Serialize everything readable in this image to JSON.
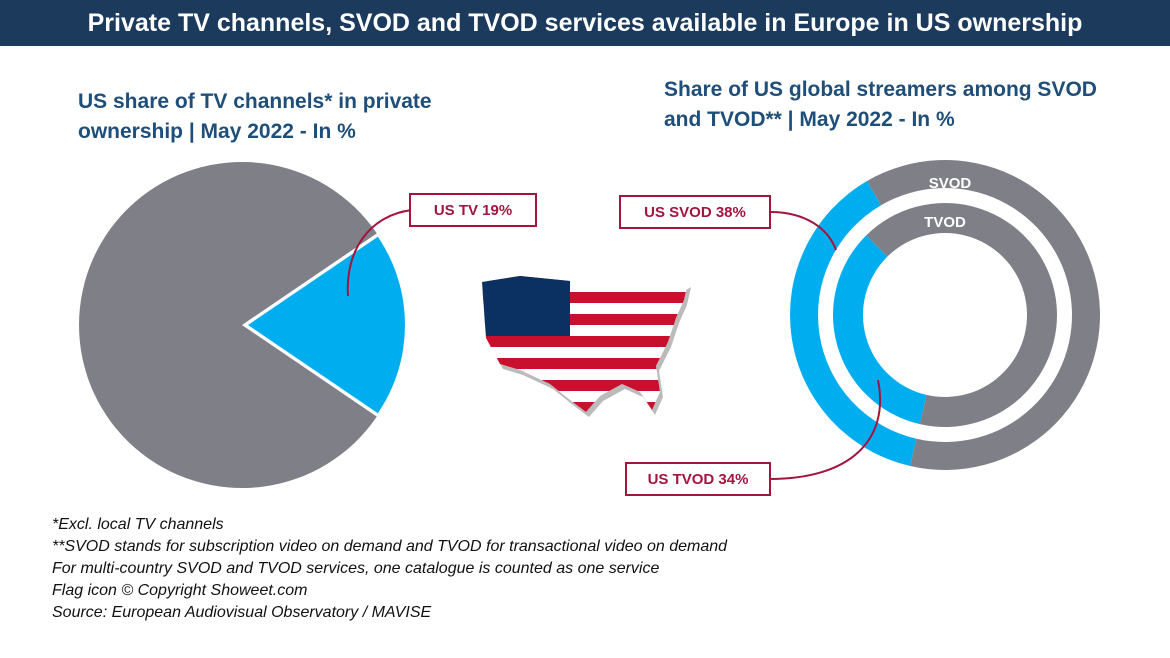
{
  "header": {
    "title": "Private TV channels, SVOD and TVOD services available in Europe in US ownership"
  },
  "chart_data": [
    {
      "type": "pie",
      "title": "US share of TV channels* in private ownership | May 2022 - In %",
      "values": [
        19,
        81
      ],
      "value_labels": [
        "US TV 19%",
        null
      ],
      "colors": [
        "#00aeef",
        "#7f7f87"
      ]
    },
    {
      "type": "donut",
      "title": "Share of US global streamers among SVOD and TVOD** | May 2022 - In %",
      "series": [
        {
          "name": "SVOD",
          "values": [
            38,
            62
          ],
          "value_labels": [
            "US SVOD 38%",
            null
          ],
          "colors": [
            "#00aeef",
            "#7f7f87"
          ]
        },
        {
          "name": "TVOD",
          "values": [
            34,
            66
          ],
          "value_labels": [
            "US TVOD 34%",
            null
          ],
          "colors": [
            "#00aeef",
            "#7f7f87"
          ]
        }
      ]
    }
  ],
  "footnotes": [
    "*Excl. local TV channels",
    "**SVOD stands for subscription video on demand and TVOD for transactional video on demand",
    "For multi-country SVOD and TVOD services, one catalogue is counted as one service",
    "Flag icon © Copyright Showeet.com",
    "Source: European Audiovisual Observatory / MAVISE"
  ]
}
